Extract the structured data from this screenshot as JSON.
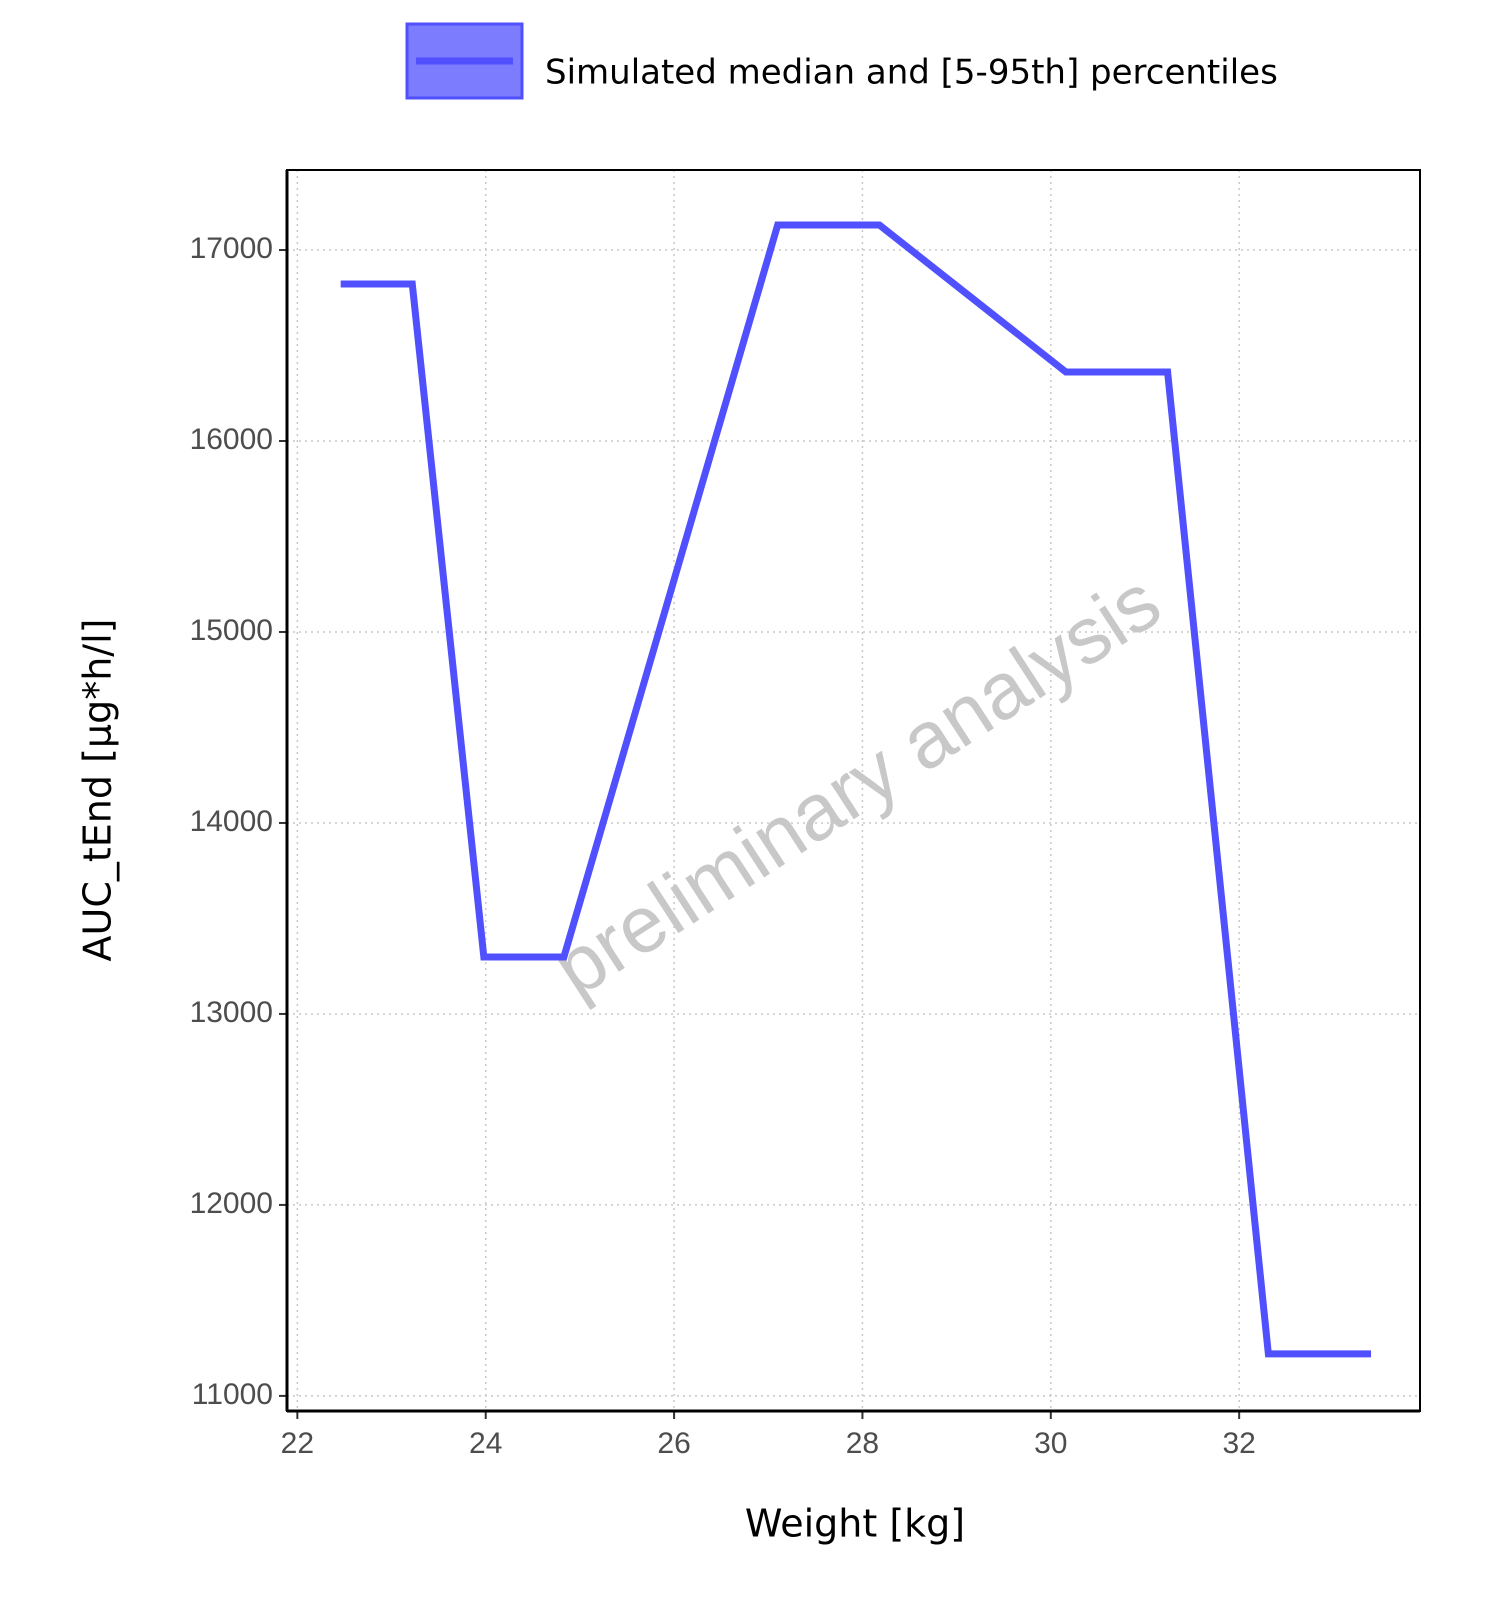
{
  "chart_data": {
    "type": "line",
    "x_label": "Weight [kg]",
    "y_label": "AUC_tEnd [µg*h/l]",
    "watermark": "preliminary analysis",
    "x": [
      22.46,
      23.22,
      23.98,
      24.83,
      27.1,
      28.18,
      30.16,
      31.24,
      32.31,
      33.4
    ],
    "series": [
      {
        "name": "Simulated median and [5-95th] percentiles",
        "color": "#5050ff",
        "values": [
          16822,
          16822,
          13298,
          13298,
          17131,
          17131,
          16361,
          16361,
          11220,
          11220
        ]
      }
    ],
    "xlim": [
      21.89,
      33.92
    ],
    "xticks": [
      22,
      24,
      26,
      28,
      30,
      32
    ],
    "ylim": [
      10921,
      17419
    ],
    "yticks": [
      11000,
      12000,
      13000,
      14000,
      15000,
      16000,
      17000
    ],
    "grid": true,
    "legend_position": "top"
  }
}
